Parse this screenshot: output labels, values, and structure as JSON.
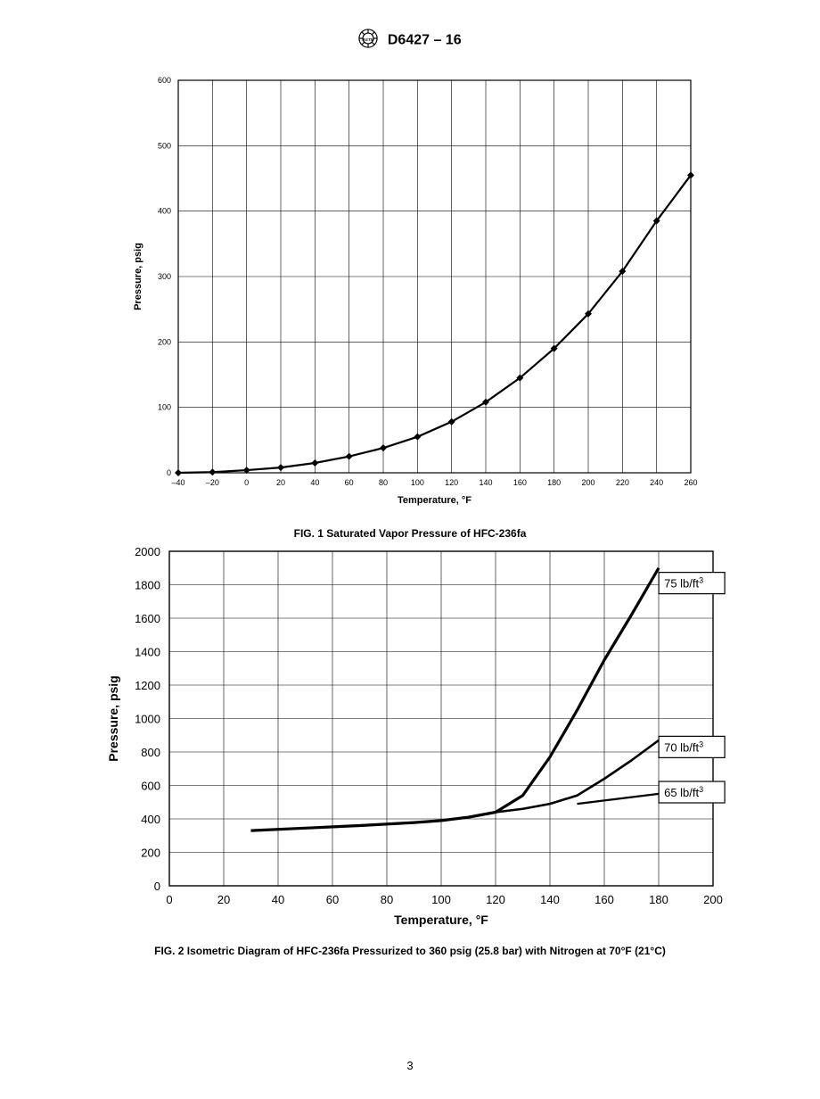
{
  "header": {
    "standard": "D6427 – 16"
  },
  "page_number": "3",
  "fig1": {
    "type": "line",
    "caption": "FIG. 1 Saturated Vapor Pressure of HFC-236fa",
    "xlabel": "Temperature, °F",
    "ylabel": "Pressure, psig",
    "xlim": [
      -40,
      260
    ],
    "ylim": [
      0,
      600
    ],
    "xtick_step": 20,
    "ytick_step": 100,
    "xticks": [
      -40,
      -20,
      0,
      20,
      40,
      60,
      80,
      100,
      120,
      140,
      160,
      180,
      200,
      220,
      240,
      260
    ],
    "yticks": [
      0,
      100,
      200,
      300,
      400,
      500,
      600
    ],
    "tick_fontsize": 9,
    "label_fontsize": 11,
    "label_fontweight": "bold",
    "line_color": "#000000",
    "line_width": 2.2,
    "marker": "diamond",
    "marker_size": 4,
    "marker_color": "#000000",
    "background_color": "#ffffff",
    "border_color": "#000000",
    "grid_color": "#000000",
    "grid_width": 0.6,
    "series": {
      "x": [
        -40,
        -20,
        0,
        20,
        40,
        60,
        80,
        100,
        120,
        140,
        160,
        180,
        200,
        220,
        240,
        260
      ],
      "y": [
        0,
        1,
        4,
        8,
        15,
        25,
        38,
        55,
        78,
        108,
        145,
        190,
        243,
        308,
        385,
        455
      ]
    }
  },
  "fig2": {
    "type": "line",
    "caption": "FIG. 2 Isometric Diagram of HFC-236fa Pressurized to 360 psig (25.8 bar) with Nitrogen at 70°F (21°C)",
    "xlabel": "Temperature, °F",
    "ylabel": "Pressure, psig",
    "xlim": [
      0,
      200
    ],
    "ylim": [
      0,
      2000
    ],
    "xtick_step": 20,
    "ytick_step": 200,
    "xticks": [
      0,
      20,
      40,
      60,
      80,
      100,
      120,
      140,
      160,
      180,
      200
    ],
    "yticks": [
      0,
      200,
      400,
      600,
      800,
      1000,
      1200,
      1400,
      1600,
      1800,
      2000
    ],
    "tick_fontsize": 13,
    "label_fontsize": 14,
    "label_fontweight": "bold",
    "line_color": "#000000",
    "background_color": "#ffffff",
    "border_color": "#000000",
    "grid_color": "#000000",
    "grid_width": 0.6,
    "series": [
      {
        "label": "75 lb/ft³",
        "label_box_x": 182,
        "label_box_y": 1810,
        "line_width": 3.2,
        "x": [
          30,
          50,
          70,
          90,
          100,
          110,
          120,
          130,
          140,
          150,
          160,
          170,
          180
        ],
        "y": [
          330,
          345,
          360,
          378,
          390,
          410,
          440,
          540,
          770,
          1050,
          1350,
          1620,
          1900
        ]
      },
      {
        "label": "70 lb/ft³",
        "label_box_x": 182,
        "label_box_y": 830,
        "line_width": 2.6,
        "x": [
          120,
          130,
          140,
          150,
          160,
          170,
          180
        ],
        "y": [
          440,
          460,
          490,
          540,
          640,
          750,
          870
        ]
      },
      {
        "label": "65 lb/ft³",
        "label_box_x": 182,
        "label_box_y": 560,
        "line_width": 2.2,
        "x": [
          150,
          160,
          170,
          180
        ],
        "y": [
          490,
          510,
          530,
          550
        ]
      }
    ]
  }
}
